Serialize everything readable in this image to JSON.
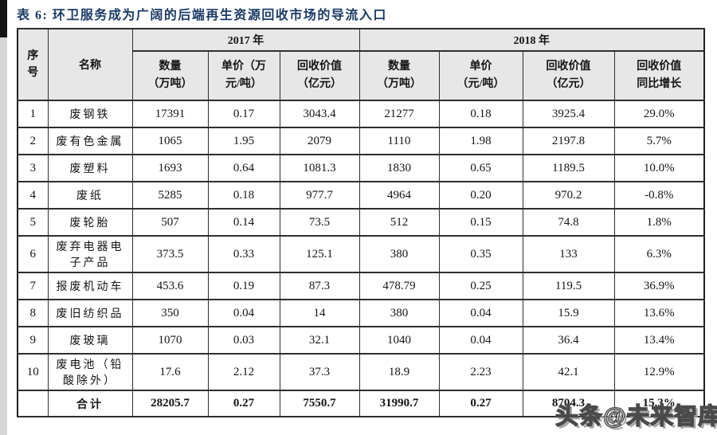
{
  "page": {
    "title": "表 6: 环卫服务成为广阔的后端再生资源回收市场的导流入口"
  },
  "colors": {
    "title_navy": "#1b3a66",
    "header_bg": "#e7e7e7",
    "border": "#2e2e2e",
    "watermark_fill": "#ffffff",
    "watermark_outline": "#4a4a4a"
  },
  "table": {
    "header": {
      "col_index": "序号",
      "col_name": "名称",
      "group_2017": "2017 年",
      "group_2018": "2018 年",
      "sub_2017": [
        {
          "line1": "数量",
          "line2": "（万吨）"
        },
        {
          "line1": "单价（万",
          "line2": "元/吨）"
        },
        {
          "line1": "回收价值",
          "line2": "（亿元）"
        }
      ],
      "sub_2018": [
        {
          "line1": "数量",
          "line2": "（万吨）"
        },
        {
          "line1": "单价",
          "line2": "（元/吨）"
        },
        {
          "line1": "回收价值",
          "line2": "（亿元）"
        },
        {
          "line1": "回收价值",
          "line2": "同比增长"
        }
      ]
    },
    "rows": [
      {
        "no": "1",
        "name": "废钢铁",
        "q2017": "17391",
        "p2017": "0.17",
        "v2017": "3043.4",
        "q2018": "21277",
        "p2018": "0.18",
        "v2018": "3925.4",
        "growth": "29.0%"
      },
      {
        "no": "2",
        "name": "废有色金属",
        "q2017": "1065",
        "p2017": "1.95",
        "v2017": "2079",
        "q2018": "1110",
        "p2018": "1.98",
        "v2018": "2197.8",
        "growth": "5.7%"
      },
      {
        "no": "3",
        "name": "废塑料",
        "q2017": "1693",
        "p2017": "0.64",
        "v2017": "1081.3",
        "q2018": "1830",
        "p2018": "0.65",
        "v2018": "1189.5",
        "growth": "10.0%"
      },
      {
        "no": "4",
        "name": "废纸",
        "q2017": "5285",
        "p2017": "0.18",
        "v2017": "977.7",
        "q2018": "4964",
        "p2018": "0.20",
        "v2018": "970.2",
        "growth": "-0.8%"
      },
      {
        "no": "5",
        "name": "废轮胎",
        "q2017": "507",
        "p2017": "0.14",
        "v2017": "73.5",
        "q2018": "512",
        "p2018": "0.15",
        "v2018": "74.8",
        "growth": "1.8%"
      },
      {
        "no": "6",
        "name": "废弃电器电子产品",
        "q2017": "373.5",
        "p2017": "0.33",
        "v2017": "125.1",
        "q2018": "380",
        "p2018": "0.35",
        "v2018": "133",
        "growth": "6.3%"
      },
      {
        "no": "7",
        "name": "报废机动车",
        "q2017": "453.6",
        "p2017": "0.19",
        "v2017": "87.3",
        "q2018": "478.79",
        "p2018": "0.25",
        "v2018": "119.5",
        "growth": "36.9%"
      },
      {
        "no": "8",
        "name": "废旧纺织品",
        "q2017": "350",
        "p2017": "0.04",
        "v2017": "14",
        "q2018": "380",
        "p2018": "0.04",
        "v2018": "15.9",
        "growth": "13.6%"
      },
      {
        "no": "9",
        "name": "废玻璃",
        "q2017": "1070",
        "p2017": "0.03",
        "v2017": "32.1",
        "q2018": "1040",
        "p2018": "0.04",
        "v2018": "36.4",
        "growth": "13.4%"
      },
      {
        "no": "10",
        "name": "废电池（铅酸除外）",
        "q2017": "17.6",
        "p2017": "2.12",
        "v2017": "37.3",
        "q2018": "18.9",
        "p2018": "2.23",
        "v2018": "42.1",
        "growth": "12.9%"
      }
    ],
    "total": {
      "no": "",
      "name": "合计",
      "q2017": "28205.7",
      "p2017": "0.27",
      "v2017": "7550.7",
      "q2018": "31990.7",
      "p2018": "0.27",
      "v2018": "8704.3",
      "growth": "15.3%"
    }
  },
  "watermark": {
    "text": "头条@未来智库"
  }
}
